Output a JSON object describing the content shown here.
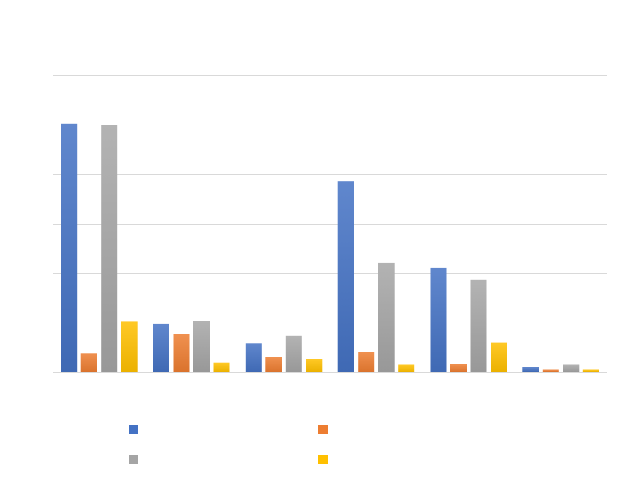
{
  "chart_data": {
    "type": "bar",
    "title": "",
    "xlabel": "",
    "ylabel": "",
    "ylim": [
      0,
      6
    ],
    "yticks": [
      0,
      1,
      2,
      3,
      4,
      5,
      6
    ],
    "grid": true,
    "legend": "bottom",
    "categories": [
      "",
      "",
      "",
      "",
      "",
      ""
    ],
    "series": [
      {
        "color": "#4472c4",
        "values": [
          5.02,
          0.97,
          0.58,
          3.86,
          2.11,
          0.1
        ]
      },
      {
        "color": "#ed7d31",
        "values": [
          0.38,
          0.77,
          0.3,
          0.4,
          0.16,
          0.05
        ]
      },
      {
        "color": "#a5a5a5",
        "values": [
          4.99,
          1.04,
          0.73,
          2.21,
          1.87,
          0.15
        ]
      },
      {
        "color": "#ffc000",
        "values": [
          1.02,
          0.19,
          0.26,
          0.15,
          0.59,
          0.05
        ]
      }
    ]
  }
}
